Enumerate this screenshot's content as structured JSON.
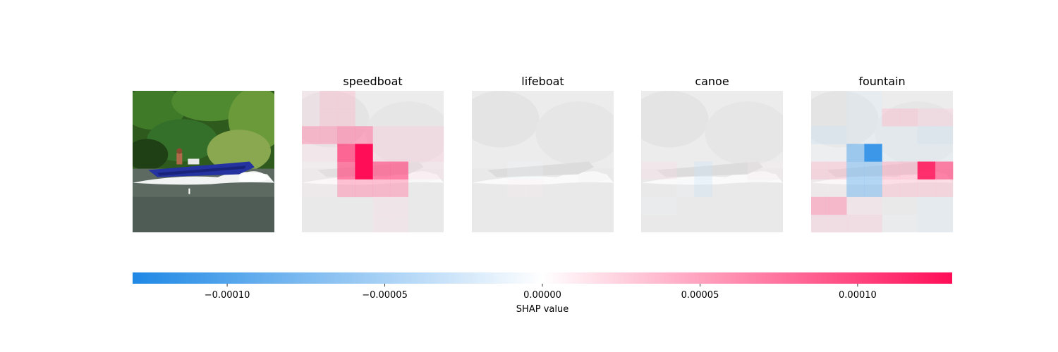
{
  "chart_data": {
    "type": "heatmap",
    "title": "",
    "panels": [
      {
        "title": "",
        "kind": "original-image"
      },
      {
        "title": "speedboat",
        "kind": "shap-map"
      },
      {
        "title": "lifeboat",
        "kind": "shap-map"
      },
      {
        "title": "canoe",
        "kind": "shap-map"
      },
      {
        "title": "fountain",
        "kind": "shap-map"
      }
    ],
    "grid": {
      "rows": 8,
      "cols": 8
    },
    "shap_values": {
      "speedboat": [
        [
          2e-05,
          4e-05,
          4e-05,
          0.0,
          0.0,
          0.0,
          0.0,
          0.0
        ],
        [
          2e-05,
          4e-05,
          4e-05,
          0.0,
          0.0,
          0.0,
          0.0,
          0.0
        ],
        [
          6e-05,
          6e-05,
          7e-05,
          7e-05,
          3e-05,
          3e-05,
          3e-05,
          3e-05
        ],
        [
          2e-05,
          2e-05,
          0.0001,
          0.00013,
          3e-05,
          3e-05,
          3e-05,
          3e-05
        ],
        [
          1e-05,
          1e-05,
          9e-05,
          0.00013,
          9e-05,
          9e-05,
          2e-05,
          2e-05
        ],
        [
          1e-05,
          1e-05,
          6e-05,
          6e-05,
          6e-05,
          6e-05,
          0.0,
          0.0
        ],
        [
          0.0,
          0.0,
          0.0,
          0.0,
          2e-05,
          2e-05,
          0.0,
          0.0
        ],
        [
          0.0,
          0.0,
          0.0,
          0.0,
          2e-05,
          2e-05,
          0.0,
          0.0
        ]
      ],
      "lifeboat": [
        [
          0.0,
          0.0,
          0.0,
          0.0,
          0.0,
          0.0,
          0.0,
          0.0
        ],
        [
          0.0,
          0.0,
          0.0,
          0.0,
          0.0,
          0.0,
          0.0,
          0.0
        ],
        [
          0.0,
          0.0,
          0.0,
          0.0,
          0.0,
          0.0,
          0.0,
          0.0
        ],
        [
          0.0,
          0.0,
          0.0,
          0.0,
          0.0,
          0.0,
          0.0,
          0.0
        ],
        [
          0.0,
          0.0,
          -1e-05,
          -1e-05,
          0.0,
          0.0,
          0.0,
          0.0
        ],
        [
          0.0,
          0.0,
          1e-05,
          1e-05,
          0.0,
          0.0,
          0.0,
          0.0
        ],
        [
          0.0,
          0.0,
          0.0,
          0.0,
          0.0,
          0.0,
          0.0,
          0.0
        ],
        [
          0.0,
          0.0,
          0.0,
          0.0,
          0.0,
          0.0,
          0.0,
          0.0
        ]
      ],
      "canoe": [
        [
          0.0,
          0.0,
          0.0,
          0.0,
          0.0,
          0.0,
          0.0,
          0.0
        ],
        [
          0.0,
          0.0,
          0.0,
          0.0,
          0.0,
          0.0,
          0.0,
          0.0
        ],
        [
          0.0,
          0.0,
          0.0,
          0.0,
          0.0,
          0.0,
          0.0,
          0.0
        ],
        [
          0.0,
          0.0,
          0.0,
          0.0,
          0.0,
          0.0,
          0.0,
          0.0
        ],
        [
          2e-05,
          2e-05,
          0.0,
          -3e-05,
          0.0,
          0.0,
          1e-05,
          1e-05
        ],
        [
          0.0,
          0.0,
          -1e-05,
          -3e-05,
          0.0,
          0.0,
          0.0,
          0.0
        ],
        [
          -1e-05,
          -1e-05,
          0.0,
          0.0,
          0.0,
          0.0,
          0.0,
          0.0
        ],
        [
          0.0,
          0.0,
          0.0,
          0.0,
          0.0,
          0.0,
          0.0,
          0.0
        ]
      ],
      "fountain": [
        [
          0.0,
          0.0,
          -2e-05,
          -2e-05,
          0.0,
          0.0,
          0.0,
          0.0
        ],
        [
          0.0,
          0.0,
          -2e-05,
          -2e-05,
          4e-05,
          4e-05,
          3e-05,
          3e-05
        ],
        [
          -3e-05,
          -3e-05,
          -2e-05,
          -2e-05,
          -2e-05,
          -2e-05,
          -3e-05,
          -3e-05
        ],
        [
          -1e-05,
          -1e-05,
          -8e-05,
          -0.00012,
          -2e-05,
          -2e-05,
          -2e-05,
          -2e-05
        ],
        [
          4e-05,
          4e-05,
          -7e-05,
          -7e-05,
          5e-05,
          5e-05,
          0.00012,
          9e-05
        ],
        [
          1e-05,
          1e-05,
          -7e-05,
          -7e-05,
          4e-05,
          4e-05,
          4e-05,
          4e-05
        ],
        [
          6e-05,
          6e-05,
          2e-05,
          2e-05,
          0.0,
          0.0,
          -2e-05,
          -2e-05
        ],
        [
          3e-05,
          3e-05,
          3e-05,
          3e-05,
          -1e-05,
          -1e-05,
          -2e-05,
          -2e-05
        ]
      ]
    },
    "colorbar": {
      "label": "SHAP value",
      "min": -0.00013,
      "max": 0.00013,
      "ticks": [
        -0.0001,
        -5e-05,
        0.0,
        5e-05,
        0.0001
      ],
      "tick_labels": [
        "−0.00010",
        "−0.00005",
        "0.00000",
        "0.00005",
        "0.00010"
      ],
      "negative_color": "#1e88e5",
      "positive_color": "#ff0d57",
      "neutral_color": "#ffffff"
    }
  }
}
